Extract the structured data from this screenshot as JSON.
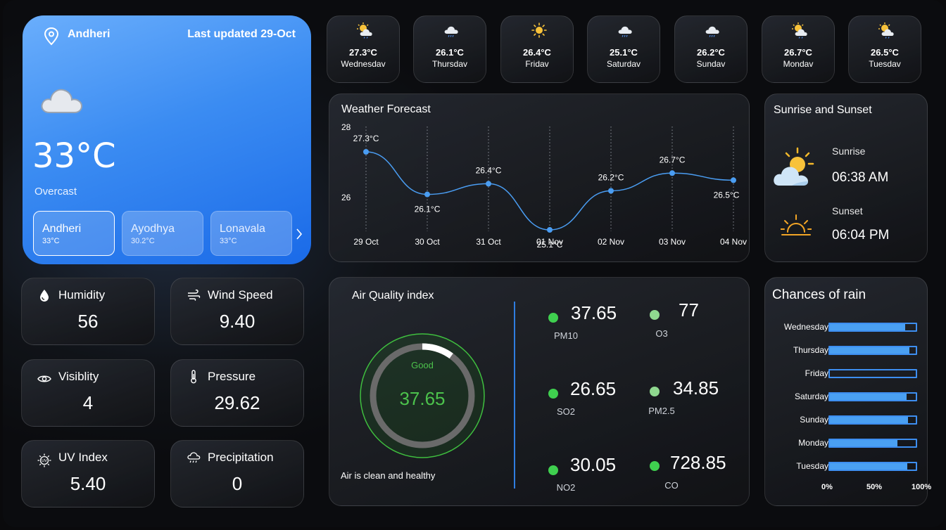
{
  "current": {
    "location": "Andheri",
    "updated": "Last updated 29-Oct",
    "temp": "33°C",
    "condition": "Overcast",
    "cities": [
      {
        "name": "Andheri",
        "temp": "33°C"
      },
      {
        "name": "Ayodhya",
        "temp": "30.2°C"
      },
      {
        "name": "Lonavala",
        "temp": "33°C"
      }
    ]
  },
  "stats": [
    {
      "label": "Humidity",
      "value": "56",
      "icon": "droplet-icon"
    },
    {
      "label": "Wind Speed",
      "value": "9.40",
      "icon": "wind-icon"
    },
    {
      "label": "Visiblity",
      "value": "4",
      "icon": "eye-icon"
    },
    {
      "label": "Pressure",
      "value": "29.62",
      "icon": "thermometer-icon"
    },
    {
      "label": "UV Index",
      "value": "5.40",
      "icon": "uv-icon"
    },
    {
      "label": "Precipitation",
      "value": "0",
      "icon": "rain-cloud-icon"
    }
  ],
  "daily": [
    {
      "temp": "27.3°C",
      "day": "Wednesdav",
      "icon": "sun-cloud-rain-icon"
    },
    {
      "temp": "26.1°C",
      "day": "Thursdav",
      "icon": "cloud-rain-icon"
    },
    {
      "temp": "26.4°C",
      "day": "Fridav",
      "icon": "sun-icon"
    },
    {
      "temp": "25.1°C",
      "day": "Saturdav",
      "icon": "cloud-rain-icon"
    },
    {
      "temp": "26.2°C",
      "day": "Sundav",
      "icon": "cloud-rain-icon"
    },
    {
      "temp": "26.7°C",
      "day": "Mondav",
      "icon": "sun-cloud-rain-icon"
    },
    {
      "temp": "26.5°C",
      "day": "Tuesdav",
      "icon": "sun-cloud-rain-icon"
    }
  ],
  "forecast": {
    "title": "Weather Forecast"
  },
  "chart_data": [
    {
      "type": "line",
      "title": "Weather Forecast",
      "x": [
        "29 Oct",
        "30 Oct",
        "31 Oct",
        "01 Nov",
        "02 Nov",
        "03 Nov",
        "04 Nov"
      ],
      "y": [
        27.3,
        26.1,
        26.4,
        25.1,
        26.2,
        26.7,
        26.5
      ],
      "point_labels": [
        "27.3°C",
        "26.1°C",
        "26.4°C",
        "25.1°C",
        "26.2°C",
        "26.7°C",
        "26.5°C"
      ],
      "yticks": [
        "28",
        "26"
      ],
      "ylim": [
        25.1,
        28
      ],
      "color": "#4a9df2"
    },
    {
      "type": "bar",
      "title": "Chances of rain",
      "categories": [
        "Wednesday",
        "Thursday",
        "Friday",
        "Saturday",
        "Sunday",
        "Monday",
        "Tuesday"
      ],
      "values": [
        88,
        93,
        0,
        89,
        91,
        79,
        90
      ],
      "xticks": [
        "0%",
        "50%",
        "100%"
      ],
      "xlim": [
        0,
        100
      ],
      "orientation": "horizontal",
      "color": "#4aa0f2"
    }
  ],
  "sun": {
    "title": "Sunrise and Sunset",
    "sunrise_label": "Sunrise",
    "sunrise": "06:38 AM",
    "sunset_label": "Sunset",
    "sunset": "06:04 PM"
  },
  "aqi": {
    "title": "Air Quality index",
    "status": "Good",
    "value": "37.65",
    "note": "Air is clean and healthy",
    "gauge_fraction": 0.1,
    "colors": {
      "ring": "#3fbf3f",
      "value": "#4cc24c",
      "gauge_bg": "#6a6a6a"
    },
    "pollutants": [
      {
        "value": "37.65",
        "label": "PM10",
        "color": "#3fcf4f"
      },
      {
        "value": "77",
        "label": "O3",
        "color": "#8fd88f"
      },
      {
        "value": "26.65",
        "label": "SO2",
        "color": "#3fcf4f"
      },
      {
        "value": "34.85",
        "label": "PM2.5",
        "color": "#8fd88f"
      },
      {
        "value": "30.05",
        "label": "NO2",
        "color": "#3fcf4f"
      },
      {
        "value": "728.85",
        "label": "CO",
        "color": "#3fcf4f"
      }
    ]
  },
  "rain": {
    "title": "Chances of rain"
  }
}
